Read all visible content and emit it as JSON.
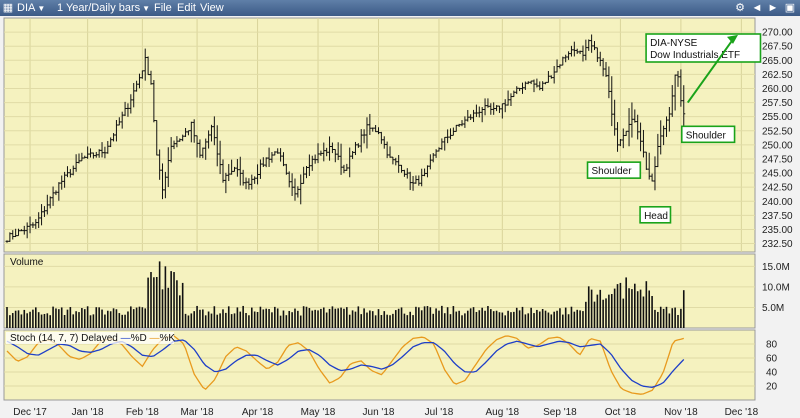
{
  "toolbar": {
    "symbol": "DIA",
    "period": "1 Year/Daily bars",
    "menu": [
      "File",
      "Edit",
      "View"
    ]
  },
  "colors": {
    "chart_bg": "#f5f2bf",
    "axis_bg": "#f2f2f2",
    "bar": "#111111",
    "stoch_fast": "#e89a1e",
    "stoch_slow": "#1e3fc8",
    "annotation": "#1aa31a",
    "menubar": "#4a6a96"
  },
  "annotations": {
    "ticker_box": [
      "DIA-NYSE",
      "Dow Industrials ETF"
    ],
    "left_shoulder": "Shoulder",
    "right_shoulder": "Shoulder",
    "head": "Head"
  },
  "chart_data": [
    {
      "type": "ohlc",
      "title": "",
      "x": [
        "Dec '17",
        "Jan '18",
        "Feb '18",
        "Mar '18",
        "Apr '18",
        "May '18",
        "Jun '18",
        "Jul '18",
        "Aug '18",
        "Sep '18",
        "Oct '18",
        "Nov '18",
        "Dec '18"
      ],
      "ylim": [
        231.0,
        272.5
      ],
      "y_ticks": [
        "270.00",
        "267.50",
        "265.00",
        "262.50",
        "260.00",
        "257.50",
        "255.00",
        "252.50",
        "250.00",
        "247.50",
        "245.00",
        "242.50",
        "240.00",
        "237.50",
        "235.00",
        "232.50"
      ],
      "close_anchors": [
        [
          0,
          233.5
        ],
        [
          10,
          236.0
        ],
        [
          18,
          243.0
        ],
        [
          26,
          247.5
        ],
        [
          34,
          249.0
        ],
        [
          42,
          257.0
        ],
        [
          46,
          262.0
        ],
        [
          48,
          265.0
        ],
        [
          50,
          261.0
        ],
        [
          52,
          248.0
        ],
        [
          54,
          242.0
        ],
        [
          57,
          250.0
        ],
        [
          61,
          251.5
        ],
        [
          64,
          253.5
        ],
        [
          67,
          248.0
        ],
        [
          71,
          253.0
        ],
        [
          75,
          244.0
        ],
        [
          79,
          246.0
        ],
        [
          83,
          243.0
        ],
        [
          86,
          244.5
        ],
        [
          90,
          247.5
        ],
        [
          94,
          249.0
        ],
        [
          98,
          243.0
        ],
        [
          100,
          241.0
        ],
        [
          104,
          246.5
        ],
        [
          109,
          248.5
        ],
        [
          113,
          249.5
        ],
        [
          117,
          245.5
        ],
        [
          121,
          249.5
        ],
        [
          125,
          253.0
        ],
        [
          129,
          252.5
        ],
        [
          133,
          247.5
        ],
        [
          137,
          246.0
        ],
        [
          141,
          243.0
        ],
        [
          145,
          244.5
        ],
        [
          149,
          249.0
        ],
        [
          153,
          251.5
        ],
        [
          157,
          253.5
        ],
        [
          161,
          255.0
        ],
        [
          165,
          256.5
        ],
        [
          169,
          256.0
        ],
        [
          173,
          257.5
        ],
        [
          177,
          259.5
        ],
        [
          181,
          261.5
        ],
        [
          185,
          260.0
        ],
        [
          189,
          262.5
        ],
        [
          192,
          264.5
        ],
        [
          195,
          266.5
        ],
        [
          198,
          267.0
        ],
        [
          200,
          265.5
        ],
        [
          202,
          268.0
        ],
        [
          205,
          266.0
        ],
        [
          208,
          262.0
        ],
        [
          210,
          256.0
        ],
        [
          212,
          250.5
        ],
        [
          215,
          253.0
        ],
        [
          218,
          254.5
        ],
        [
          220,
          251.0
        ],
        [
          222,
          246.0
        ],
        [
          224,
          243.0
        ],
        [
          226,
          249.5
        ],
        [
          228,
          253.0
        ],
        [
          230,
          256.0
        ],
        [
          232,
          262.0
        ],
        [
          233,
          261.5
        ],
        [
          235,
          255.0
        ]
      ],
      "annotation_points": {
        "left_shoulder": {
          "x": 212,
          "y": 248.0
        },
        "head": {
          "x": 224,
          "y": 241.5
        },
        "right_shoulder": {
          "x": 235,
          "y": 254.0
        }
      }
    },
    {
      "type": "bar",
      "title": "Volume",
      "ylim": [
        0,
        18.0
      ],
      "y_ticks": [
        "15.0M",
        "10.0M",
        "5.0M"
      ],
      "note": "Daily volume, millions of shares; peaks near Feb '18 (about 16M) and Oct '18 (about 12M)"
    },
    {
      "type": "line",
      "title": "Stoch",
      "params": "(14, 7, 7) Delayed",
      "series": [
        {
          "name": "%K",
          "values": [
            70,
            55,
            62,
            82,
            86,
            78,
            62,
            58,
            66,
            84,
            88,
            80,
            62,
            48,
            72,
            88,
            92,
            80,
            36,
            14,
            30,
            62,
            76,
            70,
            56,
            44,
            54,
            78,
            82,
            70,
            44,
            24,
            32,
            52,
            56,
            42,
            36,
            56,
            76,
            88,
            90,
            80,
            44,
            22,
            28,
            50,
            72,
            86,
            92,
            88,
            74,
            78,
            88,
            90,
            80,
            64,
            88,
            84,
            42,
            16,
            10,
            8,
            14,
            38,
            84,
            88
          ]
        },
        {
          "name": "%D",
          "values": [
            84,
            76,
            66,
            64,
            72,
            80,
            78,
            70,
            68,
            72,
            80,
            84,
            76,
            64,
            62,
            72,
            84,
            86,
            72,
            50,
            40,
            44,
            56,
            64,
            64,
            56,
            50,
            58,
            70,
            72,
            64,
            50,
            42,
            44,
            50,
            48,
            44,
            50,
            62,
            76,
            82,
            82,
            70,
            52,
            40,
            40,
            54,
            70,
            80,
            84,
            80,
            76,
            80,
            84,
            82,
            76,
            78,
            80,
            66,
            44,
            28,
            20,
            18,
            24,
            42,
            58
          ]
        }
      ],
      "ylim": [
        0,
        100
      ],
      "y_ticks": [
        "80",
        "60",
        "40",
        "20"
      ]
    }
  ]
}
